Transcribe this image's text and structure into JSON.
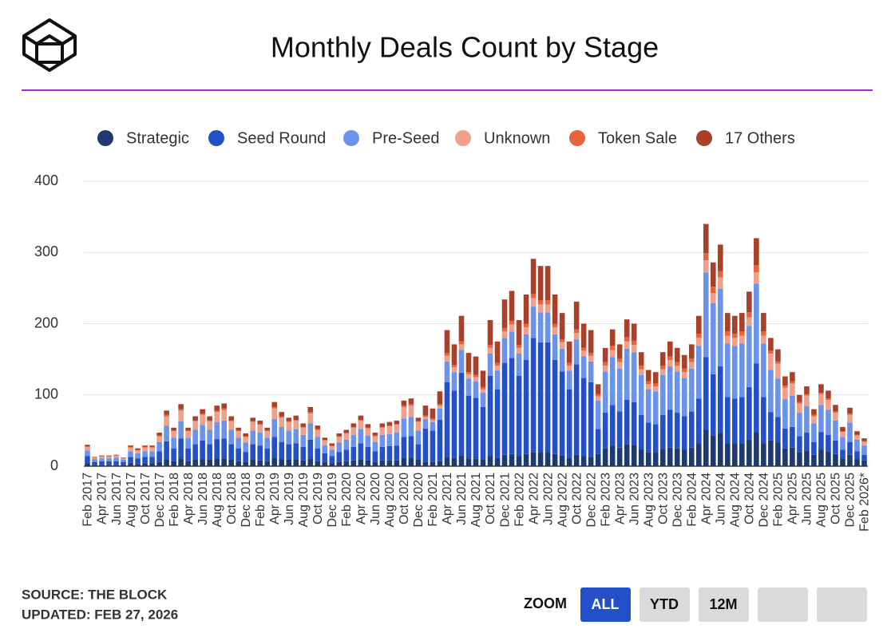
{
  "chart_data": {
    "type": "stacked_bar",
    "title": "Monthly Deals Count by Stage",
    "source": "SOURCE: THE BLOCK",
    "updated": "UPDATED: FEB 27, 2026",
    "zoom": {
      "label": "ZOOM",
      "buttons": [
        "ALL",
        "YTD",
        "12M"
      ]
    },
    "ylim": [
      0,
      400
    ],
    "yticks": [
      0,
      100,
      200,
      300,
      400
    ],
    "grid": true,
    "categories": [
      "Feb 2017",
      null,
      "Apr 2017",
      null,
      "Jun 2017",
      null,
      "Aug 2017",
      null,
      "Oct 2017",
      null,
      "Dec 2017",
      null,
      "Feb 2018",
      null,
      "Apr 2018",
      null,
      "Jun 2018",
      null,
      "Aug 2018",
      null,
      "Oct 2018",
      null,
      "Dec 2018",
      null,
      "Feb 2019",
      null,
      "Apr 2019",
      null,
      "Jun 2019",
      null,
      "Aug 2019",
      null,
      "Oct 2019",
      null,
      "Dec 2019",
      null,
      "Feb 2020",
      null,
      "Apr 2020",
      null,
      "Jun 2020",
      null,
      "Aug 2020",
      null,
      "Oct 2020",
      null,
      "Dec 2020",
      null,
      "Feb 2021",
      null,
      "Apr 2021",
      null,
      "Jun 2021",
      null,
      "Aug 2021",
      null,
      "Oct 2021",
      null,
      "Dec 2021",
      null,
      "Feb 2022",
      null,
      "Apr 2022",
      null,
      "Jun 2022",
      null,
      "Aug 2022",
      null,
      "Oct 2022",
      null,
      "Dec 2022",
      null,
      "Feb 2023",
      null,
      "Apr 2023",
      null,
      "Jun 2023",
      null,
      "Aug 2023",
      null,
      "Oct 2023",
      null,
      "Dec 2023",
      null,
      "Feb 2024",
      null,
      "Apr 2024",
      null,
      "Jun 2024",
      null,
      "Aug 2024",
      null,
      "Oct 2024",
      null,
      "Dec 2024",
      null,
      "Feb 2025",
      null,
      "Apr 2025",
      null,
      "Jun 2025",
      null,
      "Aug 2025",
      null,
      "Oct 2025",
      null,
      "Dec 2025",
      null,
      "Feb 2026*"
    ],
    "series": [
      {
        "name": "Strategic",
        "color": "#1f3a6e",
        "values": [
          4,
          2,
          2,
          2,
          2,
          2,
          4,
          3,
          4,
          4,
          6,
          10,
          7,
          11,
          7,
          9,
          10,
          9,
          11,
          11,
          9,
          7,
          6,
          9,
          8,
          7,
          12,
          10,
          9,
          9,
          8,
          11,
          7,
          5,
          4,
          6,
          7,
          8,
          9,
          8,
          6,
          8,
          8,
          8,
          12,
          12,
          9,
          6,
          6,
          7,
          13,
          12,
          15,
          11,
          11,
          9,
          14,
          12,
          16,
          17,
          14,
          17,
          20,
          20,
          20,
          17,
          15,
          12,
          16,
          14,
          13,
          17,
          25,
          29,
          26,
          31,
          30,
          24,
          20,
          20,
          24,
          26,
          25,
          23,
          26,
          32,
          51,
          43,
          47,
          32,
          32,
          32,
          37,
          48,
          32,
          36,
          33,
          25,
          26,
          20,
          22,
          16,
          23,
          21,
          17,
          11,
          16,
          10,
          8
        ]
      },
      {
        "name": "Seed Round",
        "color": "#2350c8",
        "values": [
          10,
          4,
          5,
          5,
          5,
          4,
          9,
          8,
          9,
          9,
          15,
          25,
          18,
          28,
          18,
          22,
          26,
          22,
          27,
          28,
          22,
          18,
          14,
          22,
          21,
          18,
          29,
          24,
          22,
          23,
          19,
          26,
          18,
          13,
          10,
          14,
          16,
          19,
          23,
          19,
          15,
          19,
          20,
          21,
          29,
          30,
          22,
          47,
          44,
          58,
          105,
          94,
          116,
          88,
          85,
          74,
          113,
          96,
          129,
          135,
          113,
          132,
          160,
          154,
          154,
          132,
          118,
          96,
          127,
          110,
          105,
          35,
          50,
          57,
          51,
          62,
          60,
          48,
          41,
          39,
          48,
          53,
          50,
          47,
          51,
          63,
          102,
          86,
          93,
          65,
          63,
          65,
          74,
          96,
          65,
          40,
          36,
          28,
          29,
          22,
          25,
          18,
          25,
          23,
          19,
          12,
          18,
          11,
          8
        ]
      },
      {
        "name": "Pre-Seed",
        "color": "#6b93ea",
        "values": [
          8,
          4,
          4,
          4,
          5,
          3,
          8,
          7,
          8,
          8,
          13,
          22,
          15,
          24,
          15,
          20,
          22,
          20,
          24,
          25,
          20,
          15,
          13,
          19,
          18,
          15,
          25,
          21,
          19,
          20,
          17,
          23,
          16,
          11,
          9,
          13,
          14,
          17,
          20,
          16,
          13,
          17,
          17,
          18,
          26,
          27,
          19,
          13,
          12,
          16,
          29,
          26,
          32,
          24,
          23,
          20,
          31,
          26,
          35,
          37,
          31,
          36,
          44,
          42,
          42,
          36,
          32,
          26,
          35,
          30,
          29,
          40,
          58,
          67,
          60,
          72,
          70,
          56,
          47,
          46,
          56,
          61,
          58,
          54,
          60,
          74,
          119,
          100,
          109,
          75,
          74,
          75,
          86,
          112,
          75,
          59,
          54,
          41,
          44,
          33,
          37,
          26,
          38,
          35,
          28,
          18,
          27,
          16,
          13
        ]
      },
      {
        "name": "Unknown",
        "color": "#f0a08a",
        "values": [
          5,
          2,
          3,
          3,
          3,
          2,
          5,
          4,
          5,
          5,
          8,
          13,
          9,
          15,
          9,
          12,
          14,
          12,
          14,
          15,
          12,
          9,
          8,
          12,
          11,
          9,
          15,
          13,
          12,
          12,
          10,
          14,
          10,
          7,
          5,
          8,
          9,
          10,
          12,
          10,
          8,
          10,
          11,
          11,
          16,
          16,
          12,
          3,
          3,
          4,
          8,
          7,
          8,
          6,
          6,
          5,
          8,
          7,
          9,
          10,
          8,
          10,
          12,
          11,
          11,
          10,
          9,
          7,
          9,
          8,
          8,
          6,
          8,
          10,
          9,
          10,
          10,
          8,
          7,
          7,
          8,
          9,
          8,
          8,
          9,
          11,
          17,
          14,
          16,
          11,
          11,
          11,
          12,
          16,
          11,
          23,
          21,
          16,
          17,
          13,
          15,
          10,
          15,
          14,
          11,
          7,
          11,
          6,
          5
        ]
      },
      {
        "name": "Token Sale",
        "color": "#e8643c",
        "values": [
          1,
          0,
          0,
          0,
          0,
          0,
          1,
          1,
          1,
          1,
          1,
          2,
          1,
          2,
          1,
          1,
          2,
          1,
          2,
          2,
          1,
          1,
          1,
          1,
          1,
          1,
          2,
          2,
          1,
          1,
          1,
          2,
          1,
          1,
          1,
          1,
          1,
          1,
          1,
          1,
          1,
          1,
          1,
          1,
          2,
          2,
          1,
          2,
          2,
          2,
          4,
          3,
          4,
          3,
          3,
          3,
          4,
          4,
          5,
          5,
          4,
          5,
          6,
          6,
          6,
          5,
          4,
          4,
          5,
          4,
          4,
          3,
          5,
          6,
          5,
          6,
          6,
          5,
          4,
          4,
          5,
          5,
          5,
          5,
          5,
          6,
          10,
          9,
          9,
          6,
          6,
          6,
          7,
          10,
          6,
          4,
          3,
          3,
          3,
          2,
          2,
          2,
          2,
          2,
          2,
          1,
          2,
          1,
          1
        ]
      },
      {
        "name": "17 Others",
        "color": "#a8402a",
        "values": [
          2,
          1,
          1,
          1,
          1,
          1,
          2,
          2,
          2,
          2,
          4,
          6,
          4,
          7,
          4,
          6,
          6,
          6,
          7,
          7,
          6,
          4,
          4,
          5,
          5,
          4,
          7,
          6,
          5,
          6,
          5,
          7,
          5,
          3,
          3,
          4,
          4,
          5,
          6,
          5,
          4,
          5,
          5,
          5,
          7,
          8,
          5,
          14,
          14,
          18,
          32,
          29,
          36,
          27,
          26,
          23,
          35,
          30,
          40,
          42,
          35,
          41,
          49,
          48,
          48,
          41,
          37,
          30,
          39,
          34,
          32,
          14,
          20,
          23,
          20,
          25,
          24,
          19,
          16,
          16,
          19,
          21,
          20,
          19,
          20,
          25,
          41,
          34,
          37,
          26,
          25,
          26,
          29,
          38,
          26,
          18,
          17,
          13,
          13,
          10,
          11,
          8,
          12,
          11,
          9,
          6,
          8,
          5,
          4
        ]
      }
    ]
  }
}
